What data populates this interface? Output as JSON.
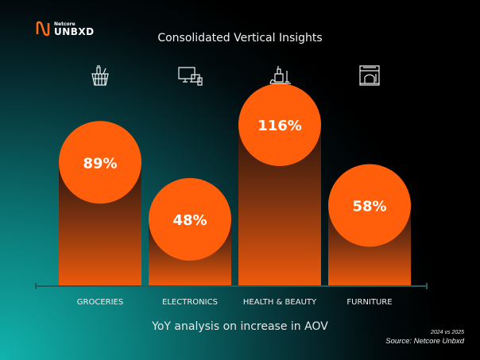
{
  "logo": {
    "small": "Netcore",
    "big": "UNBXD",
    "color": "#ff6a13"
  },
  "chart_data": {
    "type": "bar",
    "title": "Consolidated Vertical Insights",
    "subtitle": "YoY analysis on increase in AOV",
    "categories": [
      "GROCERIES",
      "ELECTRONICS",
      "HEALTH & BEAUTY",
      "FURNITURE"
    ],
    "icons": [
      "grocery-basket-icon",
      "devices-icon",
      "beauty-products-icon",
      "furniture-store-icon"
    ],
    "values": [
      89,
      48,
      116,
      58
    ],
    "labels": [
      "89%",
      "48%",
      "116%",
      "58%"
    ],
    "ylim": [
      0,
      140
    ],
    "grid": false,
    "colors": {
      "circle": "#ff5f0a",
      "bar_bottom": "#e8570c",
      "bar_top": "#3a1b0e",
      "axis": "#1d5d5c"
    }
  },
  "notes": {
    "period": "2024 vs 2025",
    "source": "Source: Netcore Unbxd"
  }
}
